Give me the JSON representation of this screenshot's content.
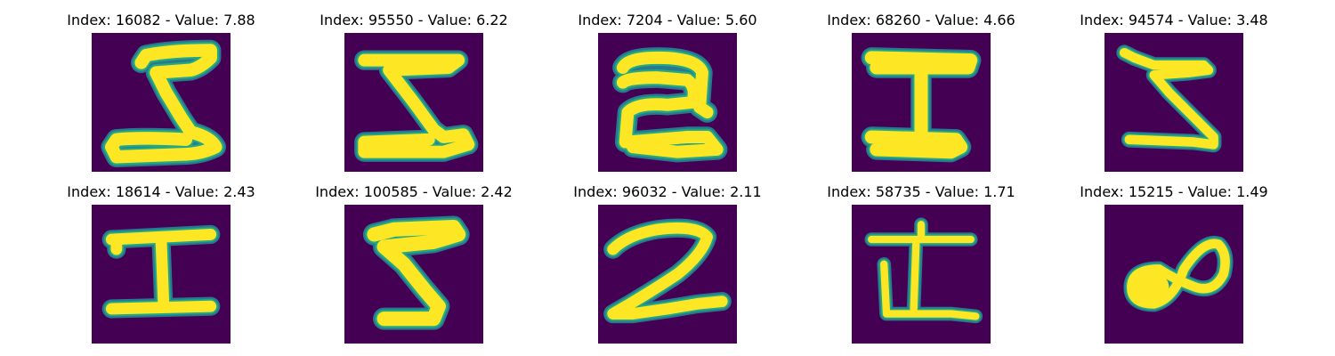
{
  "colors": {
    "background": "#440154",
    "stroke_outer": "#2a788e",
    "stroke_mid": "#22a884",
    "stroke_core": "#fde725"
  },
  "panels": [
    {
      "label": "Index: 16082 - Value: 7.88"
    },
    {
      "label": "Index: 95550 - Value: 6.22"
    },
    {
      "label": "Index: 7204 - Value: 5.60"
    },
    {
      "label": "Index: 68260 - Value: 4.66"
    },
    {
      "label": "Index: 94574 - Value: 3.48"
    },
    {
      "label": "Index: 18614 - Value: 2.43"
    },
    {
      "label": "Index: 100585 - Value: 2.42"
    },
    {
      "label": "Index: 96032 - Value: 2.11"
    },
    {
      "label": "Index: 58735 - Value: 1.71"
    },
    {
      "label": "Index: 15215 - Value: 1.49"
    }
  ]
}
